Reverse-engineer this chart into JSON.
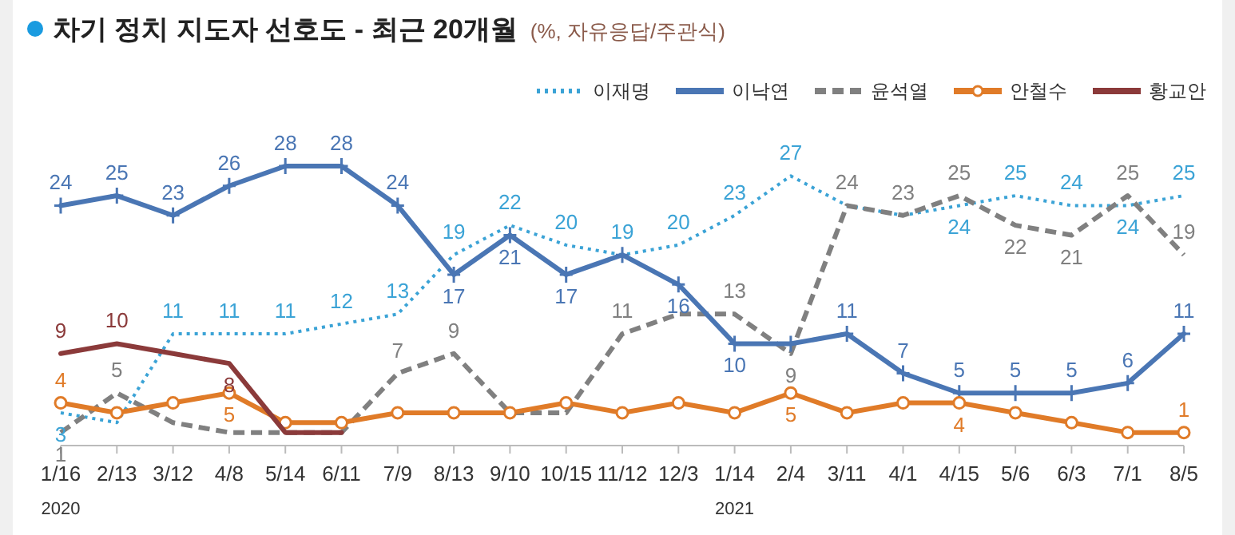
{
  "chart_data": {
    "type": "line",
    "title": "차기 정치 지도자 선호도 - 최근 20개월",
    "subtitle": "(%, 자유응답/주관식)",
    "categories": [
      "1/16",
      "2/13",
      "3/12",
      "4/8",
      "5/14",
      "6/11",
      "7/9",
      "8/13",
      "9/10",
      "10/15",
      "11/12",
      "12/3",
      "1/14",
      "2/4",
      "3/11",
      "4/1",
      "4/15",
      "5/6",
      "6/3",
      "7/1",
      "8/5"
    ],
    "tick_labels": "x",
    "grid": false,
    "legend": "top right",
    "annotations": [
      "2020",
      "2021"
    ],
    "series": [
      {
        "name": "이재명",
        "color": "#3ba3d6",
        "line_style": "dotted",
        "marker": "none",
        "values": [
          3,
          2,
          11,
          11,
          11,
          12,
          13,
          19,
          22,
          20,
          19,
          20,
          23,
          27,
          24,
          23,
          24,
          25,
          24,
          24,
          25
        ],
        "value_labels": [
          "3",
          null,
          "11",
          "11",
          "11",
          "12",
          "13",
          "19",
          "22",
          "20",
          "19",
          "20",
          "23",
          "27",
          null,
          null,
          "24",
          "25",
          "24",
          "24",
          "25"
        ]
      },
      {
        "name": "이낙연",
        "color": "#4a76b4",
        "line_style": "solid",
        "marker": "cross",
        "values": [
          24,
          25,
          23,
          26,
          28,
          28,
          24,
          17,
          21,
          17,
          19,
          16,
          10,
          10,
          11,
          7,
          5,
          5,
          5,
          6,
          11
        ],
        "value_labels": [
          "24",
          "25",
          "23",
          "26",
          "28",
          "28",
          "24",
          "17",
          "21",
          "17",
          null,
          "16",
          "10",
          null,
          "11",
          "7",
          "5",
          "5",
          "5",
          "6",
          "11"
        ]
      },
      {
        "name": "윤석열",
        "color": "#808080",
        "line_style": "dashed",
        "marker": "none",
        "values": [
          1,
          5,
          2,
          1,
          1,
          1,
          7,
          9,
          3,
          3,
          11,
          13,
          13,
          9,
          24,
          23,
          25,
          22,
          21,
          25,
          19
        ],
        "value_labels": [
          "1",
          "5",
          null,
          null,
          null,
          null,
          "7",
          "9",
          null,
          null,
          "11",
          null,
          "13",
          "9",
          "24",
          "23",
          "25",
          "22",
          "21",
          "25",
          "19"
        ]
      },
      {
        "name": "안철수",
        "color": "#e07b28",
        "line_style": "solid",
        "marker": "circle",
        "values": [
          4,
          3,
          4,
          5,
          2,
          2,
          3,
          3,
          3,
          4,
          3,
          4,
          3,
          5,
          3,
          4,
          4,
          3,
          2,
          1,
          1
        ],
        "value_labels": [
          "4",
          null,
          null,
          "5",
          null,
          null,
          null,
          null,
          null,
          null,
          null,
          null,
          null,
          "5",
          null,
          null,
          "4",
          null,
          null,
          null,
          "1"
        ]
      },
      {
        "name": "황교안",
        "color": "#8b3a3a",
        "line_style": "solid",
        "marker": "none",
        "values": [
          9,
          10,
          9,
          8,
          1,
          1,
          null,
          null,
          null,
          null,
          null,
          null,
          null,
          null,
          null,
          null,
          null,
          null,
          null,
          null,
          null
        ],
        "value_labels": [
          "9",
          "10",
          null,
          "8",
          null,
          null,
          null,
          null,
          null,
          null,
          null,
          null,
          null,
          null,
          null,
          null,
          null,
          null,
          null,
          null,
          null
        ]
      }
    ]
  }
}
